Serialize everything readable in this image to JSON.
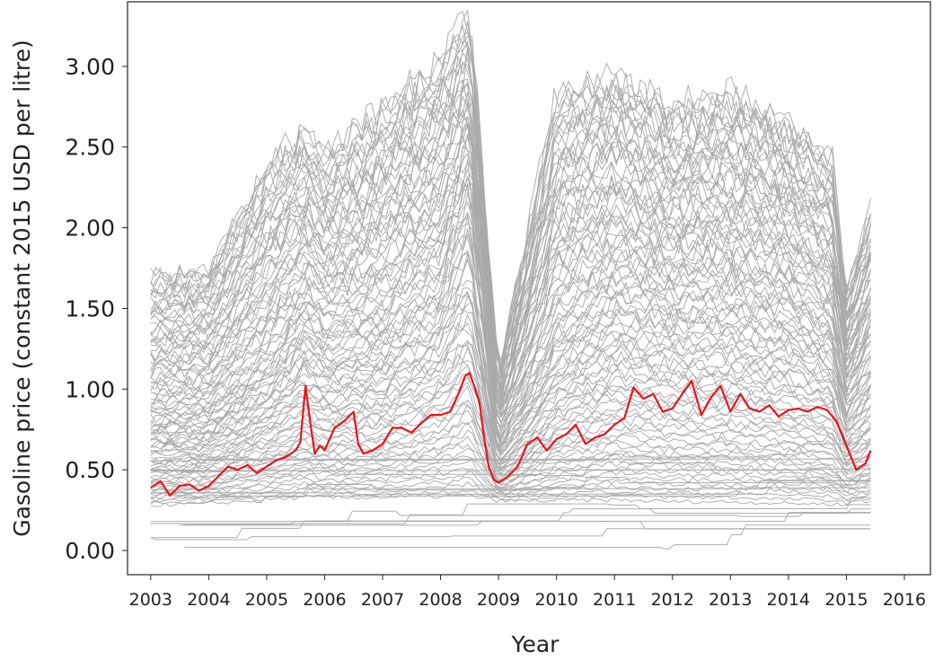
{
  "chart_data": {
    "type": "line",
    "title": "",
    "xlabel": "Year",
    "ylabel": "Gasoline price (constant 2015 USD per litre)",
    "xlim": [
      2002.6,
      2016.45
    ],
    "ylim": [
      -0.15,
      3.4
    ],
    "x_ticks": [
      "2003",
      "2004",
      "2005",
      "2006",
      "2007",
      "2008",
      "2009",
      "2010",
      "2011",
      "2012",
      "2013",
      "2014",
      "2015",
      "2016"
    ],
    "y_ticks": [
      "0.00",
      "0.50",
      "1.00",
      "1.50",
      "2.00",
      "2.50",
      "3.00"
    ],
    "grid": false,
    "legend": "none",
    "background_series_color": "#aaaaaa",
    "highlight_series_color": "#e8141c",
    "highlight_series": {
      "x": [
        2003.0,
        2003.17,
        2003.33,
        2003.5,
        2003.67,
        2003.83,
        2004.0,
        2004.17,
        2004.33,
        2004.5,
        2004.67,
        2004.83,
        2005.0,
        2005.17,
        2005.33,
        2005.5,
        2005.58,
        2005.67,
        2005.75,
        2005.83,
        2005.92,
        2006.0,
        2006.17,
        2006.33,
        2006.5,
        2006.58,
        2006.67,
        2006.83,
        2007.0,
        2007.17,
        2007.33,
        2007.5,
        2007.67,
        2007.83,
        2008.0,
        2008.17,
        2008.33,
        2008.42,
        2008.5,
        2008.58,
        2008.67,
        2008.75,
        2008.83,
        2008.92,
        2009.0,
        2009.17,
        2009.33,
        2009.5,
        2009.67,
        2009.83,
        2010.0,
        2010.17,
        2010.33,
        2010.5,
        2010.67,
        2010.83,
        2011.0,
        2011.17,
        2011.33,
        2011.5,
        2011.67,
        2011.83,
        2012.0,
        2012.17,
        2012.33,
        2012.5,
        2012.67,
        2012.83,
        2013.0,
        2013.17,
        2013.33,
        2013.5,
        2013.67,
        2013.83,
        2014.0,
        2014.17,
        2014.33,
        2014.5,
        2014.67,
        2014.83,
        2015.0,
        2015.17,
        2015.33,
        2015.42
      ],
      "values": [
        0.39,
        0.43,
        0.34,
        0.4,
        0.41,
        0.37,
        0.4,
        0.46,
        0.52,
        0.5,
        0.53,
        0.48,
        0.52,
        0.56,
        0.58,
        0.62,
        0.67,
        1.02,
        0.8,
        0.6,
        0.65,
        0.62,
        0.76,
        0.8,
        0.86,
        0.66,
        0.6,
        0.62,
        0.66,
        0.76,
        0.76,
        0.73,
        0.79,
        0.84,
        0.84,
        0.86,
        0.99,
        1.08,
        1.1,
        1.02,
        0.92,
        0.7,
        0.52,
        0.44,
        0.42,
        0.46,
        0.52,
        0.66,
        0.7,
        0.62,
        0.69,
        0.72,
        0.78,
        0.66,
        0.7,
        0.72,
        0.78,
        0.82,
        1.01,
        0.94,
        0.97,
        0.86,
        0.88,
        0.97,
        1.05,
        0.84,
        0.95,
        1.02,
        0.86,
        0.97,
        0.88,
        0.86,
        0.9,
        0.83,
        0.87,
        0.88,
        0.86,
        0.89,
        0.87,
        0.8,
        0.65,
        0.5,
        0.54,
        0.62
      ]
    },
    "background_series_envelope": {
      "x": [
        2003.0,
        2004.0,
        2005.0,
        2005.67,
        2006.0,
        2007.0,
        2008.0,
        2008.5,
        2009.0,
        2010.0,
        2011.0,
        2012.0,
        2013.0,
        2014.0,
        2014.75,
        2015.0,
        2015.42
      ],
      "upper": [
        1.7,
        1.75,
        2.4,
        2.6,
        2.45,
        2.75,
        3.05,
        3.36,
        1.1,
        2.85,
        2.95,
        2.75,
        2.85,
        2.65,
        2.45,
        1.6,
        2.1
      ],
      "median": [
        0.85,
        0.9,
        1.15,
        1.4,
        1.3,
        1.4,
        1.65,
        2.05,
        0.7,
        1.35,
        1.6,
        1.55,
        1.55,
        1.5,
        1.35,
        0.95,
        1.2
      ],
      "lower": [
        0.02,
        0.03,
        0.05,
        0.06,
        0.06,
        0.06,
        0.06,
        0.06,
        0.05,
        0.04,
        0.04,
        0.03,
        0.03,
        0.02,
        0.02,
        0.02,
        0.02
      ]
    }
  }
}
